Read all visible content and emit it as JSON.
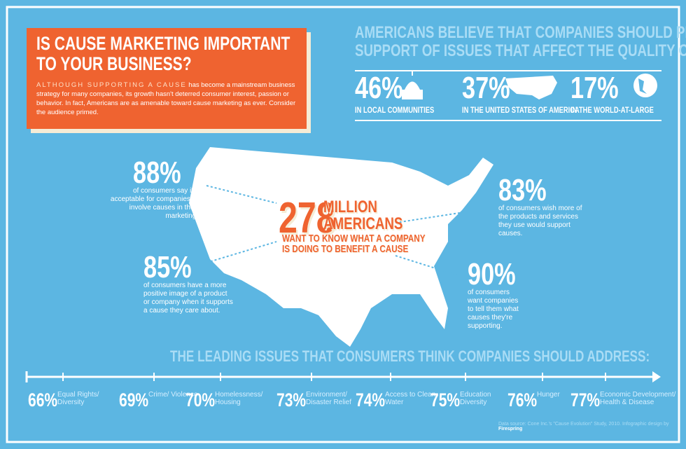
{
  "header": {
    "title_lines": [
      "IS CAUSE MARKETING IMPORTANT",
      "TO YOUR BUSINESS?"
    ],
    "lead": "ALTHOUGH SUPPORTING A CAUSE",
    "body": "has become a mainstream business strategy for many companies, its growth hasn't deterred consumer interest, passion or behavior. In fact, Americans are as amenable toward cause marketing as ever. Consider the audience primed."
  },
  "priorities": {
    "title_lines": [
      "AMERICANS BELIEVE THAT COMPANIES SHOULD PRIORITIZE",
      "SUPPORT OF ISSUES THAT AFFECT THE QUALITY OF LIFE:"
    ],
    "items": [
      {
        "value": "46%",
        "label": "IN LOCAL COMMUNITIES"
      },
      {
        "value": "37%",
        "label": "IN THE UNITED STATES OF AMERICA"
      },
      {
        "value": "17%",
        "label": "IN THE WORLD-AT-LARGE"
      }
    ]
  },
  "map": {
    "center": {
      "number": "278",
      "unit_lines": [
        "MILLION",
        "AMERICANS"
      ],
      "text_lines": [
        "WANT TO KNOW WHAT A COMPANY",
        "IS DOING TO BENEFIT A CAUSE"
      ]
    },
    "stats": [
      {
        "value": "88%",
        "text": "of consumers say it's acceptable for companies to involve causes in their marketing."
      },
      {
        "value": "83%",
        "text": "of consumers wish more of the products and services they use would support causes."
      },
      {
        "value": "85%",
        "text": "of consumers have a more positive image of a product or company when it supports a cause they care about."
      },
      {
        "value": "90%",
        "text": "of consumers want companies to tell them what causes they're supporting."
      }
    ]
  },
  "issues": {
    "title": "THE LEADING ISSUES THAT CONSUMERS THINK COMPANIES SHOULD ADDRESS:",
    "items": [
      {
        "value": "66%",
        "label": "Equal Rights/ Diversity"
      },
      {
        "value": "69%",
        "label": "Crime/ Violence"
      },
      {
        "value": "70%",
        "label": "Homelessness/ Housing"
      },
      {
        "value": "73%",
        "label": "Environment/ Disaster Relief"
      },
      {
        "value": "74%",
        "label": "Access to Clean Water"
      },
      {
        "value": "75%",
        "label": "Education Diversity"
      },
      {
        "value": "76%",
        "label": "Hunger"
      },
      {
        "value": "77%",
        "label": "Economic Development/ Health & Disease"
      }
    ]
  },
  "footer": {
    "source": "Data source: Cone Inc.'s \"Cause Evolution\" Study, 2010. Infographic design by",
    "brand": "Firespring"
  }
}
